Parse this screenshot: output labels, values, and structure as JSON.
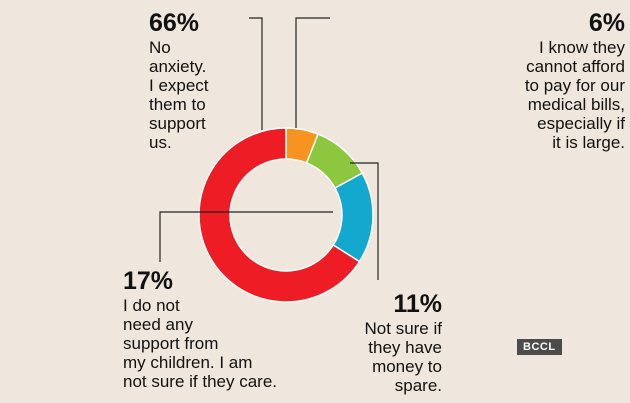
{
  "chart_data": {
    "type": "pie",
    "variant": "donut",
    "title": "",
    "slices": [
      {
        "value": 6,
        "percent_label": "6%",
        "label": "I know they\ncannot afford\nto pay for our\nmedical bills,\nespecially if\nit is large.",
        "color": "#f7931e"
      },
      {
        "value": 11,
        "percent_label": "11%",
        "label": "Not sure if\nthey have\nmoney to\nspare.",
        "color": "#8dc63f"
      },
      {
        "value": 17,
        "percent_label": "17%",
        "label": "I do not\nneed any\nsupport from\nmy children. I am\nnot sure if they care.",
        "color": "#13a8cd"
      },
      {
        "value": 66,
        "percent_label": "66%",
        "label": "No\nanxiety.\nI expect\nthem to\nsupport\nus.",
        "color": "#ee1c25"
      }
    ]
  },
  "source_badge": "BCCL",
  "colors": {
    "background": "#efe6dd",
    "donut_hole": "#efe6dd",
    "leader_line": "#222222"
  }
}
